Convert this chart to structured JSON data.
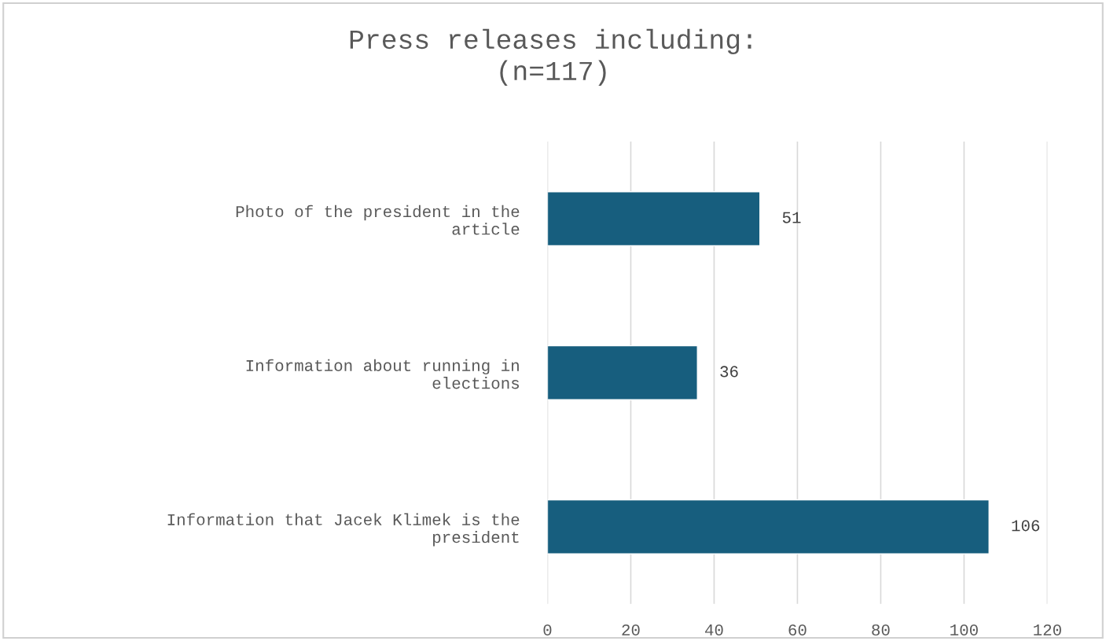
{
  "chart_data": {
    "type": "bar",
    "orientation": "horizontal",
    "title": "Press releases including:\n(n=117)",
    "categories": [
      "Photo of the president in the\narticle",
      "Information about running in\nelections",
      "Information that Jacek Klimek is the\npresident"
    ],
    "values": [
      51,
      36,
      106
    ],
    "color": "#175e7e",
    "xlim": [
      0,
      120
    ],
    "xticks": [
      0,
      20,
      40,
      60,
      80,
      100,
      120
    ],
    "grid": "x",
    "data_labels": true
  }
}
